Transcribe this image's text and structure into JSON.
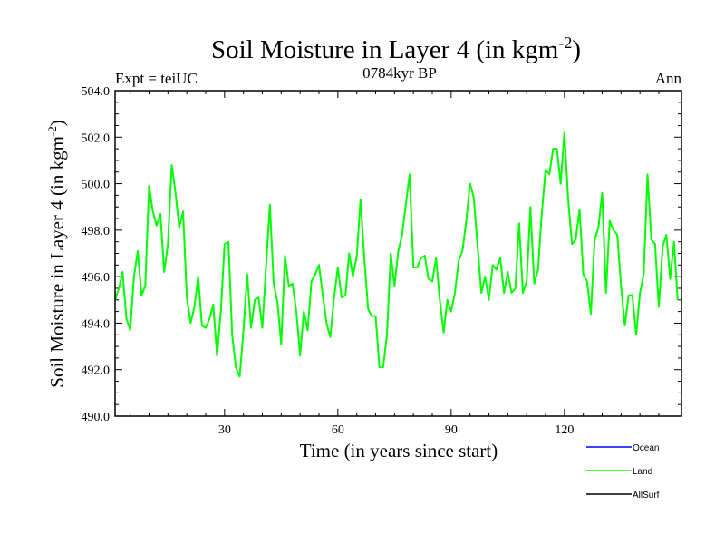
{
  "chart_data": {
    "type": "line",
    "title": "Soil Moisture in Layer 4 (in kgm",
    "title_sup": "-2",
    "title_close": ")",
    "subtitle": "0784kyr BP",
    "left_label": "Expt = teiUC",
    "right_label": "Ann",
    "xlabel": "Time (in years since start)",
    "ylabel": "Soil Moisture in Layer 4 (in kgm",
    "ylabel_sup": "-2",
    "ylabel_close": ")",
    "xlim": [
      1,
      151
    ],
    "ylim": [
      490.0,
      504.0
    ],
    "xticks": [
      30,
      60,
      90,
      120
    ],
    "xtick_labels": [
      "30",
      "60",
      "90",
      "120"
    ],
    "yticks": [
      490.0,
      492.0,
      494.0,
      496.0,
      498.0,
      500.0,
      502.0,
      504.0
    ],
    "ytick_labels": [
      "490.0",
      "492.0",
      "494.0",
      "496.0",
      "498.0",
      "500.0",
      "502.0",
      "504.0"
    ],
    "legend": [
      {
        "name": "Ocean",
        "color": "#0000ff"
      },
      {
        "name": "Land",
        "color": "#00ff00"
      },
      {
        "name": "AllSurf",
        "color": "#000000"
      }
    ],
    "series": [
      {
        "name": "Land",
        "color": "#00ff00",
        "x_start": 1,
        "values": [
          495.0,
          495.5,
          496.2,
          494.2,
          493.7,
          496.0,
          497.1,
          495.2,
          495.6,
          499.9,
          498.8,
          498.2,
          498.7,
          496.2,
          497.4,
          500.8,
          499.6,
          498.1,
          498.8,
          495.1,
          494.0,
          494.7,
          496.0,
          493.9,
          493.8,
          494.2,
          494.8,
          492.6,
          494.5,
          497.4,
          497.5,
          493.5,
          492.1,
          491.7,
          493.7,
          496.1,
          493.8,
          495.0,
          495.1,
          493.8,
          496.5,
          499.1,
          495.7,
          494.9,
          493.1,
          496.9,
          495.6,
          495.7,
          494.5,
          492.6,
          494.5,
          493.7,
          495.8,
          496.1,
          496.5,
          495.2,
          494.0,
          493.4,
          495.1,
          496.4,
          495.1,
          495.2,
          497.0,
          496.0,
          496.9,
          499.3,
          496.8,
          494.6,
          494.3,
          494.3,
          492.1,
          492.1,
          493.5,
          497.0,
          495.6,
          497.1,
          497.8,
          499.1,
          500.4,
          496.4,
          496.4,
          496.8,
          496.9,
          495.9,
          495.8,
          496.8,
          495.0,
          493.6,
          495.0,
          494.5,
          495.3,
          496.7,
          497.1,
          498.4,
          500.0,
          499.4,
          497.3,
          495.3,
          496.0,
          495.0,
          496.5,
          496.3,
          496.8,
          495.3,
          496.2,
          495.3,
          495.5,
          498.3,
          495.3,
          495.8,
          499.0,
          495.7,
          496.3,
          498.7,
          500.6,
          500.4,
          501.5,
          501.5,
          500.0,
          502.2,
          499.3,
          497.4,
          497.6,
          498.9,
          496.1,
          495.8,
          494.4,
          497.6,
          498.1,
          499.6,
          495.3,
          498.4,
          498.0,
          497.8,
          495.6,
          493.9,
          495.2,
          495.2,
          493.5,
          495.3,
          496.1,
          500.4,
          497.6,
          497.4,
          494.7,
          497.3,
          497.8,
          495.9,
          497.5,
          495.0
        ]
      }
    ]
  }
}
